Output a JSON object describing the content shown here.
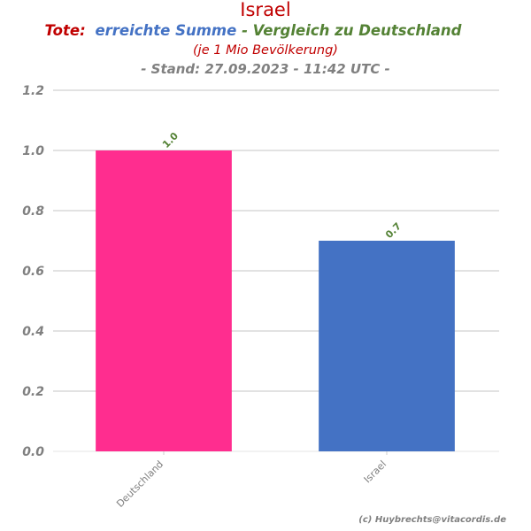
{
  "header": {
    "country": "Israel",
    "part_tote": "Tote:",
    "part_sum": "erreichte Summe",
    "part_compare": "- Vergleich zu Deutschland",
    "subtitle": "(je 1 Mio Bevölkerung)",
    "stand": "- Stand: 27.09.2023 - 11:42 UTC -"
  },
  "footer": {
    "credit": "(c) Huybrechts@vitacordis.de"
  },
  "colors": {
    "title_red": "#c00000",
    "sum_blue": "#4472c4",
    "compare_green": "#548235",
    "axis_gray": "#808080",
    "grid": "#d9d9d9",
    "bar_germany": "#ff2d8f",
    "bar_israel": "#4472c4",
    "label_green": "#548235"
  },
  "chart_data": {
    "type": "bar",
    "categories": [
      "Deutschland",
      "Israel"
    ],
    "values": [
      1.0,
      0.7
    ],
    "value_labels": [
      "1.0",
      "0.7"
    ],
    "bar_colors": [
      "#ff2d8f",
      "#4472c4"
    ],
    "ylim": [
      0,
      1.2
    ],
    "yticks": [
      "0.0",
      "0.2",
      "0.4",
      "0.6",
      "0.8",
      "1.0",
      "1.2"
    ],
    "grid": true
  }
}
